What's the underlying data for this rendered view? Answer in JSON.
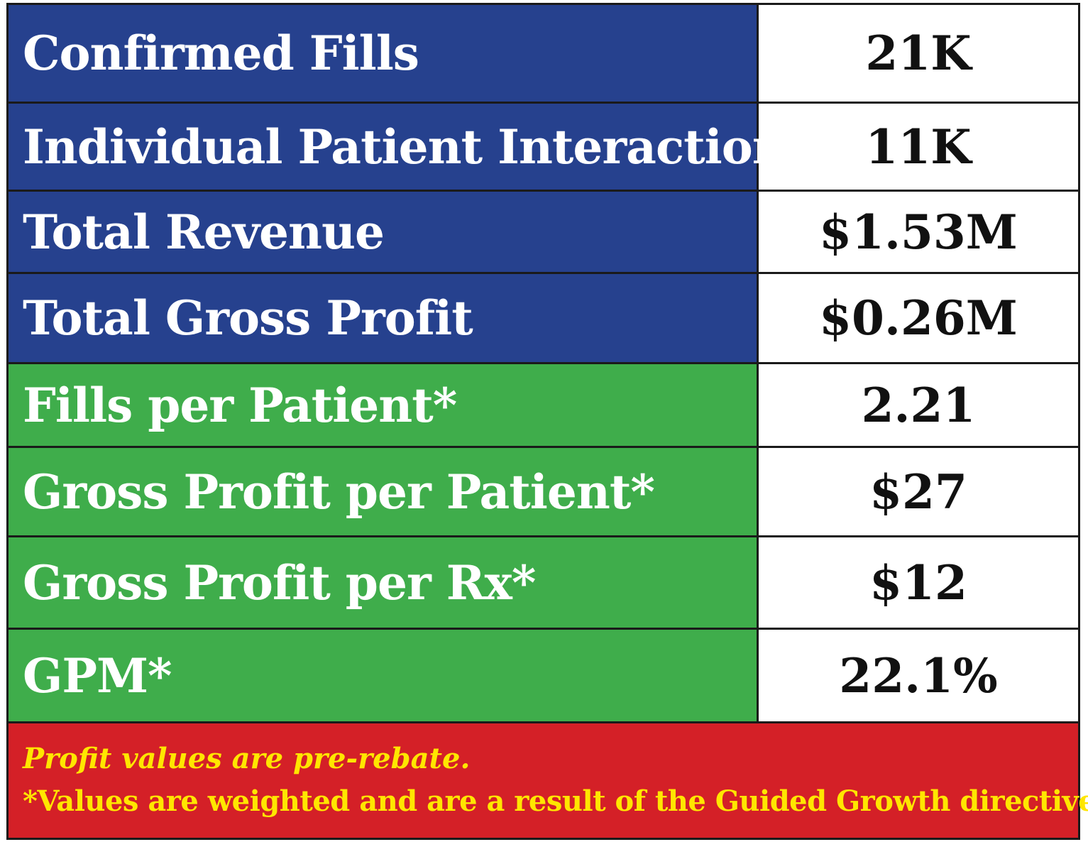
{
  "colors": {
    "primary_metric_bg": "#26418e",
    "derived_metric_bg": "#3fad4b",
    "footer_bg": "#d42027",
    "footer_text": "#ffe600",
    "value_bg": "#ffffff",
    "border": "#1a1a1a"
  },
  "rows": [
    {
      "label": "Confirmed Fills",
      "value": "21K",
      "group": "primary"
    },
    {
      "label": "Individual Patient Interactions",
      "value": "11K",
      "group": "primary"
    },
    {
      "label": "Total Revenue",
      "value": "$1.53M",
      "group": "primary"
    },
    {
      "label": "Total Gross Profit",
      "value": "$0.26M",
      "group": "primary"
    },
    {
      "label": "Fills per Patient*",
      "value": "2.21",
      "group": "derived"
    },
    {
      "label": "Gross Profit per Patient*",
      "value": "$27",
      "group": "derived"
    },
    {
      "label": "Gross Profit per Rx*",
      "value": "$12",
      "group": "derived"
    },
    {
      "label": "GPM*",
      "value": "22.1%",
      "group": "derived"
    }
  ],
  "footer": {
    "note": "Profit values are pre-rebate.",
    "disclaimer": "*Values are weighted and are a result of the Guided Growth directive."
  }
}
